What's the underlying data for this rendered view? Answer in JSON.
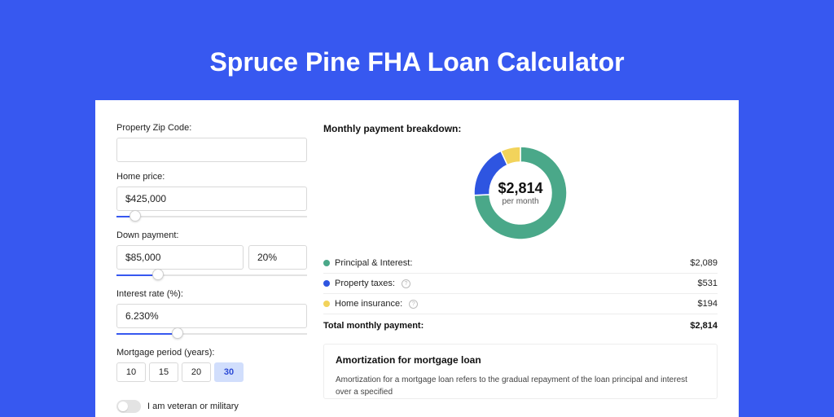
{
  "page": {
    "title": "Spruce Pine FHA Loan Calculator",
    "background_color": "#3758f0",
    "card_background": "#ffffff"
  },
  "form": {
    "zip": {
      "label": "Property Zip Code:",
      "value": ""
    },
    "home_price": {
      "label": "Home price:",
      "value": "$425,000",
      "slider_pct": 10
    },
    "down_payment": {
      "label": "Down payment:",
      "amount": "$85,000",
      "percent": "20%",
      "slider_pct": 22
    },
    "interest_rate": {
      "label": "Interest rate (%):",
      "value": "6.230%",
      "slider_pct": 32
    },
    "mortgage_period": {
      "label": "Mortgage period (years):",
      "options": [
        "10",
        "15",
        "20",
        "30"
      ],
      "selected": "30"
    },
    "veteran": {
      "label": "I am veteran or military",
      "on": false
    }
  },
  "breakdown": {
    "title": "Monthly payment breakdown:",
    "chart": {
      "type": "donut",
      "center_amount": "$2,814",
      "center_label": "per month",
      "outer_radius": 57,
      "inner_radius": 38,
      "background_color": "#ffffff",
      "slices": [
        {
          "key": "principal_interest",
          "value": 2089,
          "color": "#4aa889",
          "start_deg": -90,
          "sweep_deg": 267.2
        },
        {
          "key": "property_taxes",
          "value": 531,
          "color": "#2e55e1",
          "start_deg": 177.2,
          "sweep_deg": 67.9
        },
        {
          "key": "home_insurance",
          "value": 194,
          "color": "#f2d35b",
          "start_deg": 245.1,
          "sweep_deg": 24.9
        }
      ]
    },
    "rows": [
      {
        "label": "Principal & Interest:",
        "value": "$2,089",
        "color": "#4aa889",
        "info": false
      },
      {
        "label": "Property taxes:",
        "value": "$531",
        "color": "#2e55e1",
        "info": true
      },
      {
        "label": "Home insurance:",
        "value": "$194",
        "color": "#f2d35b",
        "info": true
      }
    ],
    "total": {
      "label": "Total monthly payment:",
      "value": "$2,814"
    }
  },
  "amortization": {
    "title": "Amortization for mortgage loan",
    "text": "Amortization for a mortgage loan refers to the gradual repayment of the loan principal and interest over a specified"
  }
}
